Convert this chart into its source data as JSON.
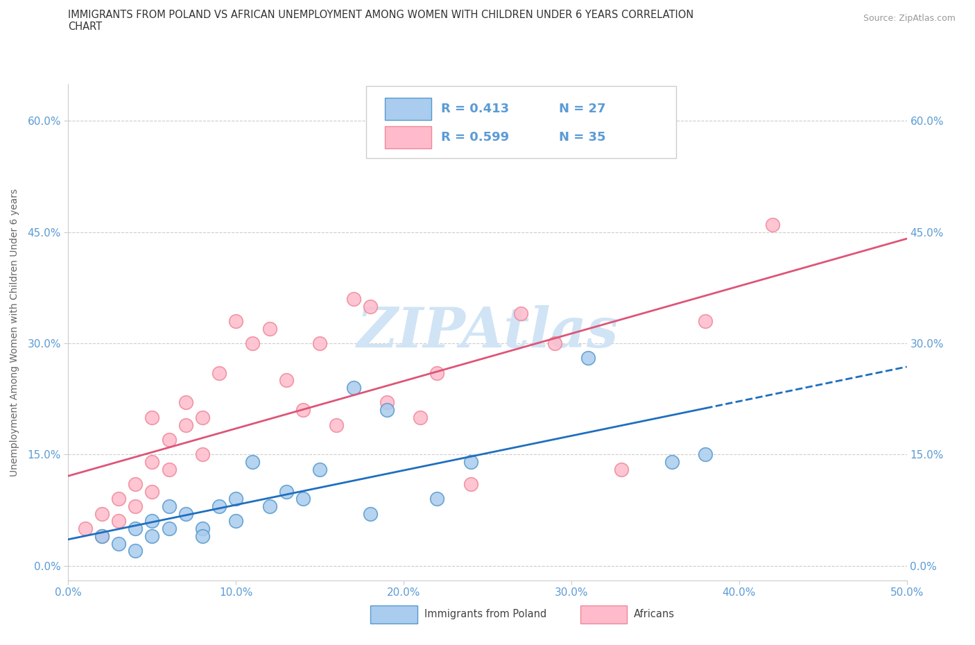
{
  "title_line1": "IMMIGRANTS FROM POLAND VS AFRICAN UNEMPLOYMENT AMONG WOMEN WITH CHILDREN UNDER 6 YEARS CORRELATION",
  "title_line2": "CHART",
  "source_text": "Source: ZipAtlas.com",
  "ylabel": "Unemployment Among Women with Children Under 6 years",
  "xlim": [
    0.0,
    0.5
  ],
  "ylim": [
    -0.02,
    0.65
  ],
  "poland_color": "#aaccee",
  "poland_edge": "#5599cc",
  "africans_color": "#ffbbcc",
  "africans_edge": "#ee8899",
  "poland_R": 0.413,
  "poland_N": 27,
  "africans_R": 0.599,
  "africans_N": 35,
  "legend_label_poland": "Immigrants from Poland",
  "legend_label_africans": "Africans",
  "poland_line_color": "#1f6fbf",
  "africans_line_color": "#dd5577",
  "watermark": "ZIPAtlas",
  "poland_scatter_x": [
    0.02,
    0.03,
    0.04,
    0.04,
    0.05,
    0.05,
    0.06,
    0.06,
    0.07,
    0.08,
    0.08,
    0.09,
    0.1,
    0.1,
    0.11,
    0.12,
    0.13,
    0.14,
    0.15,
    0.17,
    0.18,
    0.19,
    0.22,
    0.24,
    0.31,
    0.36,
    0.38
  ],
  "poland_scatter_y": [
    0.04,
    0.03,
    0.05,
    0.02,
    0.06,
    0.04,
    0.08,
    0.05,
    0.07,
    0.05,
    0.04,
    0.08,
    0.09,
    0.06,
    0.14,
    0.08,
    0.1,
    0.09,
    0.13,
    0.24,
    0.07,
    0.21,
    0.09,
    0.14,
    0.28,
    0.14,
    0.15
  ],
  "africans_scatter_x": [
    0.01,
    0.02,
    0.02,
    0.03,
    0.03,
    0.04,
    0.04,
    0.05,
    0.05,
    0.05,
    0.06,
    0.06,
    0.07,
    0.07,
    0.08,
    0.08,
    0.09,
    0.1,
    0.11,
    0.12,
    0.13,
    0.14,
    0.15,
    0.16,
    0.17,
    0.18,
    0.19,
    0.21,
    0.22,
    0.24,
    0.27,
    0.29,
    0.33,
    0.38,
    0.42
  ],
  "africans_scatter_y": [
    0.05,
    0.04,
    0.07,
    0.06,
    0.09,
    0.08,
    0.11,
    0.1,
    0.14,
    0.2,
    0.13,
    0.17,
    0.19,
    0.22,
    0.15,
    0.2,
    0.26,
    0.33,
    0.3,
    0.32,
    0.25,
    0.21,
    0.3,
    0.19,
    0.36,
    0.35,
    0.22,
    0.2,
    0.26,
    0.11,
    0.34,
    0.3,
    0.13,
    0.33,
    0.46
  ],
  "bg_color": "#ffffff",
  "grid_color": "#cccccc",
  "title_color": "#333333",
  "tick_color": "#5b9bd5",
  "axis_label_color": "#666666",
  "legend_R_color": "#5b9bd5",
  "legend_N_color": "#5b9bd5",
  "watermark_color": "#d0e4f5"
}
